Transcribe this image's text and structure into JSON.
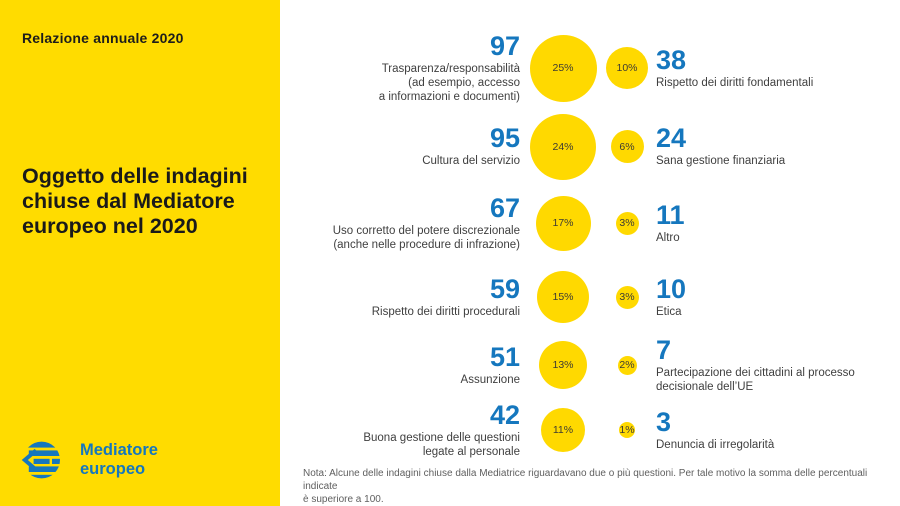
{
  "panel": {
    "kicker": "Relazione annuale 2020",
    "title": "Oggetto delle indagini\nchiuse dal Mediatore\neuropeo nel 2020",
    "logo_text": "Mediatore\neuropeo"
  },
  "chart_data": {
    "type": "bubble",
    "title": "Oggetto delle indagini chiuse dal Mediatore europeo nel 2020",
    "legend_note": "bubble area proportional to percent of closed inquiries",
    "rows": [
      {
        "left": {
          "count": 97,
          "percent": 25,
          "percent_label": "25%",
          "label": "Trasparenza/responsabilità\n(ad esempio, accesso\na informazioni e documenti)"
        },
        "right": {
          "count": 38,
          "percent": 10,
          "percent_label": "10%",
          "label": "Rispetto dei diritti fondamentali"
        }
      },
      {
        "left": {
          "count": 95,
          "percent": 24,
          "percent_label": "24%",
          "label": "Cultura del servizio"
        },
        "right": {
          "count": 24,
          "percent": 6,
          "percent_label": "6%",
          "label": "Sana gestione finanziaria"
        }
      },
      {
        "left": {
          "count": 67,
          "percent": 17,
          "percent_label": "17%",
          "label": "Uso corretto del potere discrezionale\n(anche nelle procedure di infrazione)"
        },
        "right": {
          "count": 11,
          "percent": 3,
          "percent_label": "3%",
          "label": "Altro"
        }
      },
      {
        "left": {
          "count": 59,
          "percent": 15,
          "percent_label": "15%",
          "label": "Rispetto dei diritti procedurali"
        },
        "right": {
          "count": 10,
          "percent": 3,
          "percent_label": "3%",
          "label": "Etica"
        }
      },
      {
        "left": {
          "count": 51,
          "percent": 13,
          "percent_label": "13%",
          "label": "Assunzione"
        },
        "right": {
          "count": 7,
          "percent": 2,
          "percent_label": "2%",
          "label": "Partecipazione dei cittadini al processo\ndecisionale dell’UE"
        }
      },
      {
        "left": {
          "count": 42,
          "percent": 11,
          "percent_label": "11%",
          "label": "Buona gestione delle questioni\nlegate al personale"
        },
        "right": {
          "count": 3,
          "percent": 1,
          "percent_label": "1%",
          "label": "Denuncia di irregolarità"
        }
      }
    ]
  },
  "note": "Nota: Alcune delle indagini chiuse dalla Mediatrice riguardavano due o più questioni. Per tale motivo la somma delle percentuali indicate\nè superiore a 100.",
  "colors": {
    "panel_yellow": "#FFDC00",
    "bubble_yellow": "#FFD900",
    "accent_blue": "#1577BE",
    "label_gray": "#3f3f3f",
    "note_gray": "#5f5f5f"
  }
}
